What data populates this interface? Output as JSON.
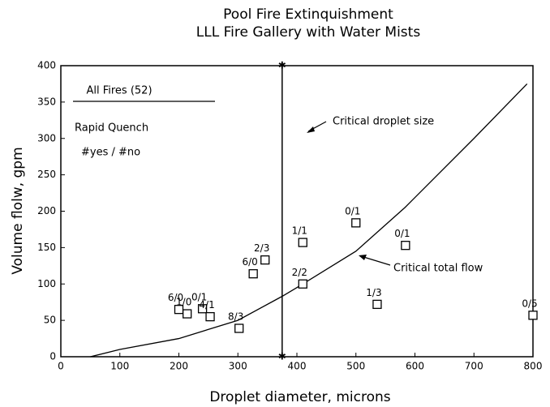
{
  "chart_data": {
    "type": "scatter",
    "title": "Pool Fire Extinquishment",
    "subtitle": "LLL Fire Gallery with Water Mists",
    "x_label": "Droplet diameter,  microns",
    "y_label": "Volume flolw,  gpm",
    "xlim": [
      0,
      800
    ],
    "ylim": [
      0,
      400
    ],
    "xticks": [
      0,
      100,
      200,
      300,
      400,
      500,
      600,
      700,
      800
    ],
    "yticks": [
      0,
      50,
      100,
      150,
      200,
      250,
      300,
      350,
      400
    ],
    "points": {
      "x": [
        200,
        214,
        240,
        253,
        302,
        326,
        346,
        410,
        410,
        500,
        584,
        536,
        800
      ],
      "values": [
        65,
        59,
        66,
        55,
        39,
        114,
        133,
        100,
        157,
        184,
        153,
        72,
        57
      ],
      "labels": [
        "6/0",
        "1/0",
        "0/1",
        "4/1",
        "8/3",
        "6/0",
        "2/3",
        "2/2",
        "1/1",
        "0/1",
        "0/1",
        "1/3",
        "0/5"
      ]
    },
    "critical_total_flow": {
      "label": "Critical total flow",
      "x": [
        50,
        100,
        200,
        300,
        375,
        400,
        500,
        583,
        700,
        790
      ],
      "values": [
        0,
        10,
        25,
        50,
        83,
        95,
        145,
        205,
        300,
        375
      ]
    },
    "critical_droplet_size": {
      "label": "Critical droplet size",
      "x": 375
    },
    "annotations": [
      "All Fires (52)",
      "Rapid Quench",
      "#yes / #no"
    ]
  }
}
